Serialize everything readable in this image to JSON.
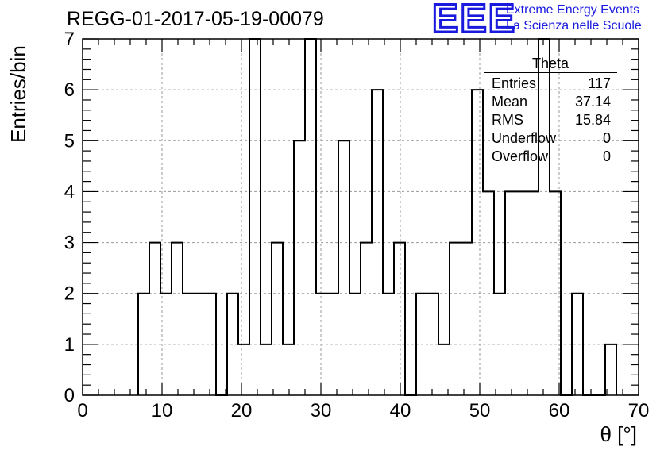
{
  "title": "REGG-01-2017-05-19-00079",
  "logo": {
    "mark": "EEE",
    "line1": "Extreme Energy Events",
    "line2": "La Scienza nelle Scuole",
    "color": "#1a1adf"
  },
  "stats": {
    "name": "Theta",
    "rows": [
      {
        "label": "Entries",
        "value": "117"
      },
      {
        "label": "Mean",
        "value": "37.14"
      },
      {
        "label": "RMS",
        "value": "15.84"
      },
      {
        "label": "Underflow",
        "value": "0"
      },
      {
        "label": "Overflow",
        "value": "0"
      }
    ]
  },
  "chart_data": {
    "type": "bar",
    "style": "step-histogram",
    "title": "REGG-01-2017-05-19-00079",
    "xlabel": "θ [°]",
    "ylabel": "Entries/bin",
    "xlim": [
      0,
      70
    ],
    "ylim": [
      0,
      7
    ],
    "bin_width": 1.4,
    "bin_start": 7.0,
    "values": [
      2,
      3,
      2,
      3,
      2,
      2,
      2,
      0,
      2,
      1,
      7,
      1,
      3,
      1,
      5,
      7,
      2,
      2,
      5,
      2,
      3,
      6,
      2,
      3,
      0,
      2,
      2,
      1,
      3,
      3,
      6,
      4,
      2,
      4,
      4,
      4,
      7,
      4,
      0,
      2,
      0,
      0,
      1
    ],
    "x_ticks": [
      0,
      10,
      20,
      30,
      40,
      50,
      60,
      70
    ],
    "y_ticks": [
      0,
      1,
      2,
      3,
      4,
      5,
      6,
      7
    ],
    "grid": true,
    "line_color": "#000000"
  }
}
